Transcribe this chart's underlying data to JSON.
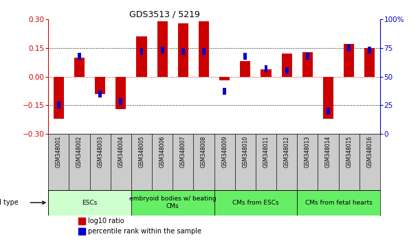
{
  "title": "GDS3513 / 5219",
  "samples": [
    "GSM348001",
    "GSM348002",
    "GSM348003",
    "GSM348004",
    "GSM348005",
    "GSM348006",
    "GSM348007",
    "GSM348008",
    "GSM348009",
    "GSM348010",
    "GSM348011",
    "GSM348012",
    "GSM348013",
    "GSM348014",
    "GSM348015",
    "GSM348016"
  ],
  "log10_ratio": [
    -0.22,
    0.1,
    -0.09,
    -0.17,
    0.21,
    0.29,
    0.28,
    0.29,
    -0.02,
    0.08,
    0.04,
    0.12,
    0.13,
    -0.22,
    0.17,
    0.15
  ],
  "percentile_rank": [
    25,
    68,
    35,
    28,
    72,
    73,
    72,
    72,
    37,
    68,
    57,
    55,
    68,
    20,
    75,
    73
  ],
  "ylim": [
    -0.3,
    0.3
  ],
  "y2lim": [
    0,
    100
  ],
  "yticks": [
    -0.3,
    -0.15,
    0,
    0.15,
    0.3
  ],
  "y2ticks": [
    0,
    25,
    50,
    75,
    100
  ],
  "hlines_dotted": [
    -0.15,
    0.15
  ],
  "hline_zero": 0,
  "bar_color_red": "#CC0000",
  "bar_color_blue": "#0000CC",
  "bar_width": 0.5,
  "blue_square_size": 0.006,
  "cell_type_label": "cell type",
  "legend_red": "log10 ratio",
  "legend_blue": "percentile rank within the sample",
  "background_color": "#ffffff",
  "plot_bg": "#ffffff",
  "ytick_color_red": "#CC0000",
  "ytick_color_blue": "#0000CC",
  "sample_bg": "#cccccc",
  "cell_groups": [
    {
      "label": "ESCs",
      "start": 0,
      "end": 3,
      "color": "#ccffcc"
    },
    {
      "label": "embryoid bodies w/ beating\nCMs",
      "start": 4,
      "end": 7,
      "color": "#66ee66"
    },
    {
      "label": "CMs from ESCs",
      "start": 8,
      "end": 11,
      "color": "#66ee66"
    },
    {
      "label": "CMs from fetal hearts",
      "start": 12,
      "end": 15,
      "color": "#66ee66"
    }
  ]
}
